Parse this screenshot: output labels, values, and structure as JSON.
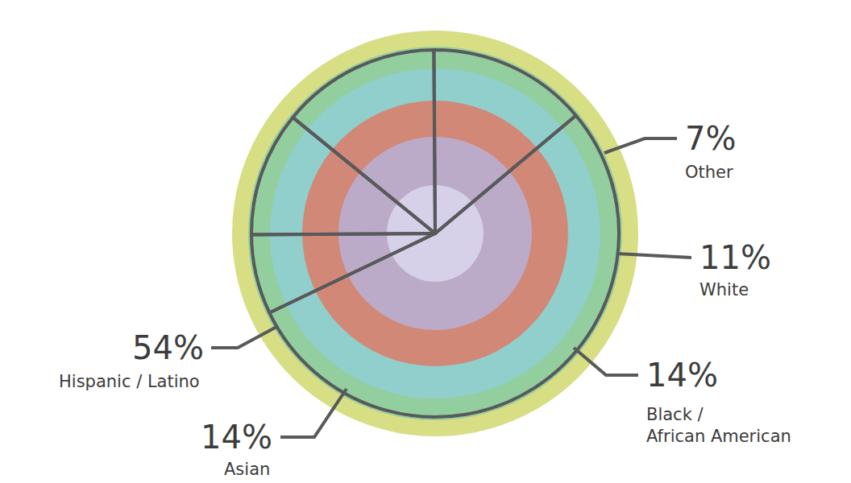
{
  "chart_data": {
    "type": "pie",
    "categories": [
      "Hispanic / Latino",
      "Asian",
      "Black / African American",
      "White",
      "Other"
    ],
    "values": [
      54,
      14,
      14,
      11,
      7
    ],
    "value_labels": [
      "54%",
      "14%",
      "14%",
      "11%",
      "7%"
    ],
    "data_labels": true
  }
}
